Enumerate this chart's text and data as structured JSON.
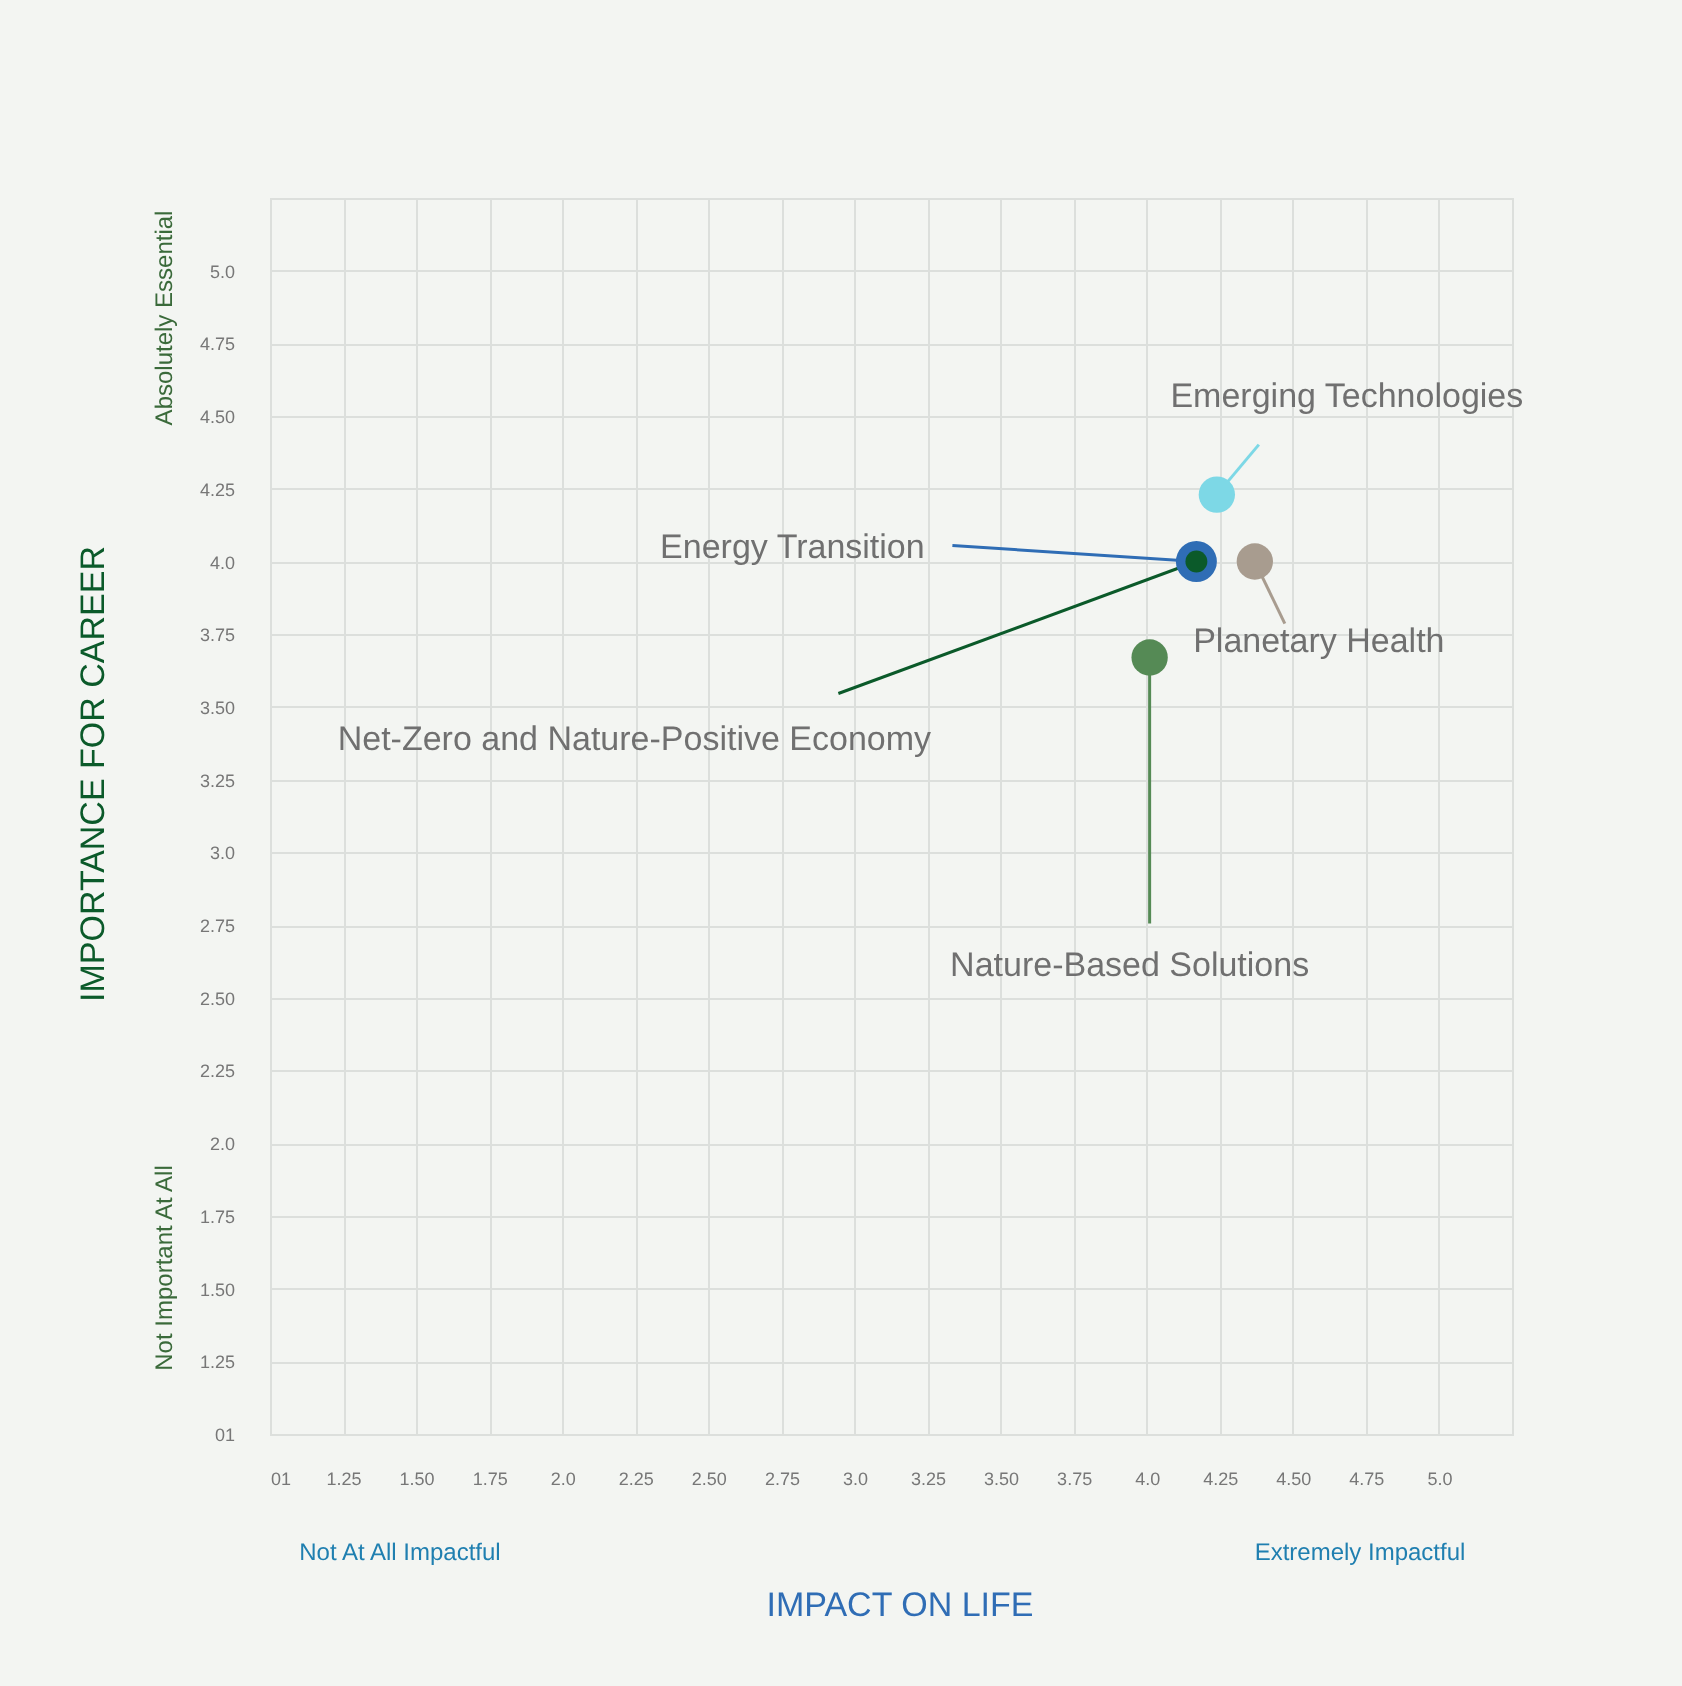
{
  "chart_data": {
    "type": "scatter",
    "xlabel": "IMPACT ON LIFE",
    "ylabel": "IMPORTANCE FOR CAREER",
    "annotations": [
      "Absolutely Essential",
      "Not Important At All",
      "Not At All Impactful",
      "Extremely Impactful"
    ],
    "xlim": [
      1,
      5.25
    ],
    "ylim": [
      1,
      5.25
    ],
    "xticks": [
      {
        "value": 1,
        "label": "01"
      },
      1.25,
      {
        "value": 1.5,
        "label": "1.50"
      },
      1.75,
      {
        "value": 2,
        "label": "2.0"
      },
      2.25,
      {
        "value": 2.5,
        "label": "2.50"
      },
      2.75,
      {
        "value": 3,
        "label": "3.0"
      },
      3.25,
      {
        "value": 3.5,
        "label": "3.50"
      },
      3.75,
      {
        "value": 4,
        "label": "4.0"
      },
      4.25,
      {
        "value": 4.5,
        "label": "4.50"
      },
      4.75,
      {
        "value": 5,
        "label": "5.0"
      }
    ],
    "yticks": [
      {
        "value": 1,
        "label": "01"
      },
      1.25,
      {
        "value": 1.5,
        "label": "1.50"
      },
      1.75,
      {
        "value": 2,
        "label": "2.0"
      },
      2.25,
      {
        "value": 2.5,
        "label": "2.50"
      },
      2.75,
      {
        "value": 3,
        "label": "3.0"
      },
      3.25,
      {
        "value": 3.5,
        "label": "3.50"
      },
      3.75,
      {
        "value": 4,
        "label": "4.0"
      },
      4.25,
      {
        "value": 4.5,
        "label": "4.50"
      },
      4.75,
      {
        "value": 5,
        "label": "5.0"
      }
    ],
    "grid": true,
    "marker": "circle",
    "series": [
      {
        "name": "Emerging Technologies",
        "color": "#7dd8e6",
        "x": [
          4.24
        ],
        "values": [
          4.23
        ]
      },
      {
        "name": "Energy Transition",
        "color": "#2f6db5",
        "x": [
          4.17
        ],
        "values": [
          4.0
        ]
      },
      {
        "name": "Net-Zero and Nature-Positive Economy",
        "color": "#0b5a2a",
        "x": [
          4.17
        ],
        "values": [
          4.0
        ]
      },
      {
        "name": "Planetary Health",
        "color": "#a89c8f",
        "x": [
          4.37
        ],
        "values": [
          4.0
        ]
      },
      {
        "name": "Nature-Based Solutions",
        "color": "#558a55",
        "x": [
          4.01
        ],
        "values": [
          3.67
        ]
      }
    ]
  }
}
